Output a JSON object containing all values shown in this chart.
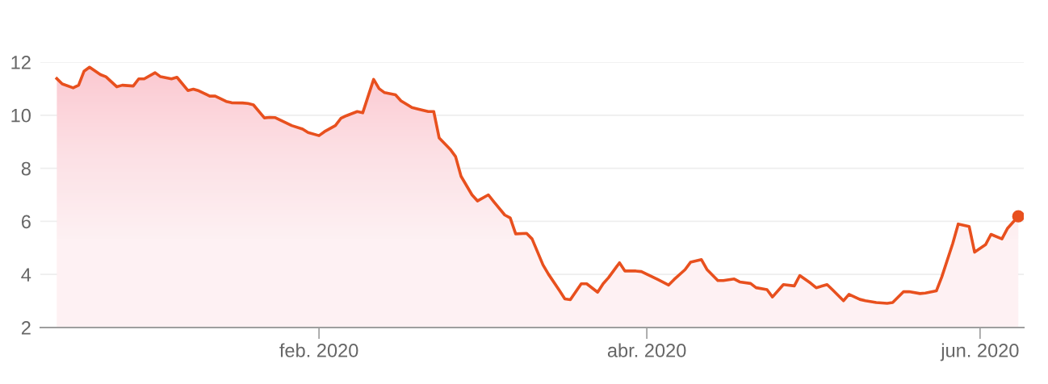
{
  "chart_data": {
    "type": "area",
    "x": [
      "2019-12-15",
      "2019-12-16",
      "2019-12-18",
      "2019-12-19",
      "2019-12-20",
      "2019-12-21",
      "2019-12-23",
      "2019-12-24",
      "2019-12-26",
      "2019-12-27",
      "2019-12-29",
      "2019-12-30",
      "2019-12-31",
      "2020-01-02",
      "2020-01-03",
      "2020-01-05",
      "2020-01-06",
      "2020-01-08",
      "2020-01-09",
      "2020-01-10",
      "2020-01-12",
      "2020-01-13",
      "2020-01-15",
      "2020-01-16",
      "2020-01-18",
      "2020-01-19",
      "2020-01-20",
      "2020-01-22",
      "2020-01-23",
      "2020-01-24",
      "2020-01-26",
      "2020-01-27",
      "2020-01-29",
      "2020-01-30",
      "2020-02-01",
      "2020-02-02",
      "2020-02-04",
      "2020-02-05",
      "2020-02-06",
      "2020-02-08",
      "2020-02-09",
      "2020-02-11",
      "2020-02-12",
      "2020-02-13",
      "2020-02-15",
      "2020-02-16",
      "2020-02-18",
      "2020-02-19",
      "2020-02-21",
      "2020-02-22",
      "2020-02-23",
      "2020-02-25",
      "2020-02-26",
      "2020-02-27",
      "2020-02-29",
      "2020-03-01",
      "2020-03-03",
      "2020-03-04",
      "2020-03-06",
      "2020-03-07",
      "2020-03-08",
      "2020-03-10",
      "2020-03-11",
      "2020-03-13",
      "2020-03-14",
      "2020-03-16",
      "2020-03-17",
      "2020-03-18",
      "2020-03-20",
      "2020-03-21",
      "2020-03-23",
      "2020-03-24",
      "2020-03-25",
      "2020-03-27",
      "2020-03-28",
      "2020-03-30",
      "2020-03-31",
      "2020-04-02",
      "2020-04-03",
      "2020-04-05",
      "2020-04-06",
      "2020-04-08",
      "2020-04-09",
      "2020-04-11",
      "2020-04-12",
      "2020-04-14",
      "2020-04-15",
      "2020-04-17",
      "2020-04-18",
      "2020-04-20",
      "2020-04-21",
      "2020-04-23",
      "2020-04-24",
      "2020-04-26",
      "2020-04-28",
      "2020-04-29",
      "2020-05-01",
      "2020-05-02",
      "2020-05-04",
      "2020-05-05",
      "2020-05-07",
      "2020-05-08",
      "2020-05-10",
      "2020-05-11",
      "2020-05-13",
      "2020-05-15",
      "2020-05-16",
      "2020-05-18",
      "2020-05-19",
      "2020-05-21",
      "2020-05-22",
      "2020-05-24",
      "2020-05-25",
      "2020-05-27",
      "2020-05-28",
      "2020-05-30",
      "2020-05-31",
      "2020-06-02",
      "2020-06-03",
      "2020-06-05",
      "2020-06-06",
      "2020-06-08"
    ],
    "series": [
      {
        "color": "#e8501e",
        "values": [
          11.38,
          11.18,
          11.03,
          11.13,
          11.66,
          11.81,
          11.53,
          11.45,
          11.07,
          11.13,
          11.1,
          11.37,
          11.37,
          11.6,
          11.45,
          11.37,
          11.43,
          10.93,
          10.98,
          10.92,
          10.72,
          10.72,
          10.52,
          10.47,
          10.46,
          10.44,
          10.39,
          9.9,
          9.92,
          9.91,
          9.71,
          9.61,
          9.48,
          9.35,
          9.23,
          9.38,
          9.61,
          9.88,
          9.98,
          10.14,
          10.09,
          11.35,
          11.0,
          10.85,
          10.77,
          10.54,
          10.29,
          10.24,
          10.14,
          10.14,
          9.14,
          8.72,
          8.44,
          7.7,
          7.0,
          6.77,
          7.0,
          6.74,
          6.24,
          6.13,
          5.53,
          5.55,
          5.34,
          4.36,
          4.01,
          3.4,
          3.08,
          3.05,
          3.65,
          3.65,
          3.33,
          3.65,
          3.88,
          4.44,
          4.13,
          4.13,
          4.11,
          3.91,
          3.81,
          3.6,
          3.81,
          4.18,
          4.46,
          4.56,
          4.19,
          3.77,
          3.77,
          3.83,
          3.72,
          3.66,
          3.5,
          3.43,
          3.15,
          3.62,
          3.57,
          3.96,
          3.67,
          3.5,
          3.62,
          3.42,
          3.01,
          3.25,
          3.06,
          3.01,
          2.94,
          2.91,
          2.94,
          3.35,
          3.35,
          3.28,
          3.3,
          3.38,
          3.91,
          5.17,
          5.9,
          5.81,
          4.84,
          5.12,
          5.51,
          5.34,
          5.73,
          6.19
        ]
      }
    ],
    "xlim": [
      "2019-12-12",
      "2020-06-09"
    ],
    "xticks": [
      {
        "value": "2020-02-01",
        "label": "feb. 2020"
      },
      {
        "value": "2020-04-01",
        "label": "abr. 2020"
      },
      {
        "value": "2020-06-01",
        "label": "jun. 2020"
      }
    ],
    "ylim": [
      2,
      12
    ],
    "yticks": [
      2,
      4,
      6,
      8,
      10,
      12
    ],
    "grid": "y",
    "line_style": "solid"
  }
}
